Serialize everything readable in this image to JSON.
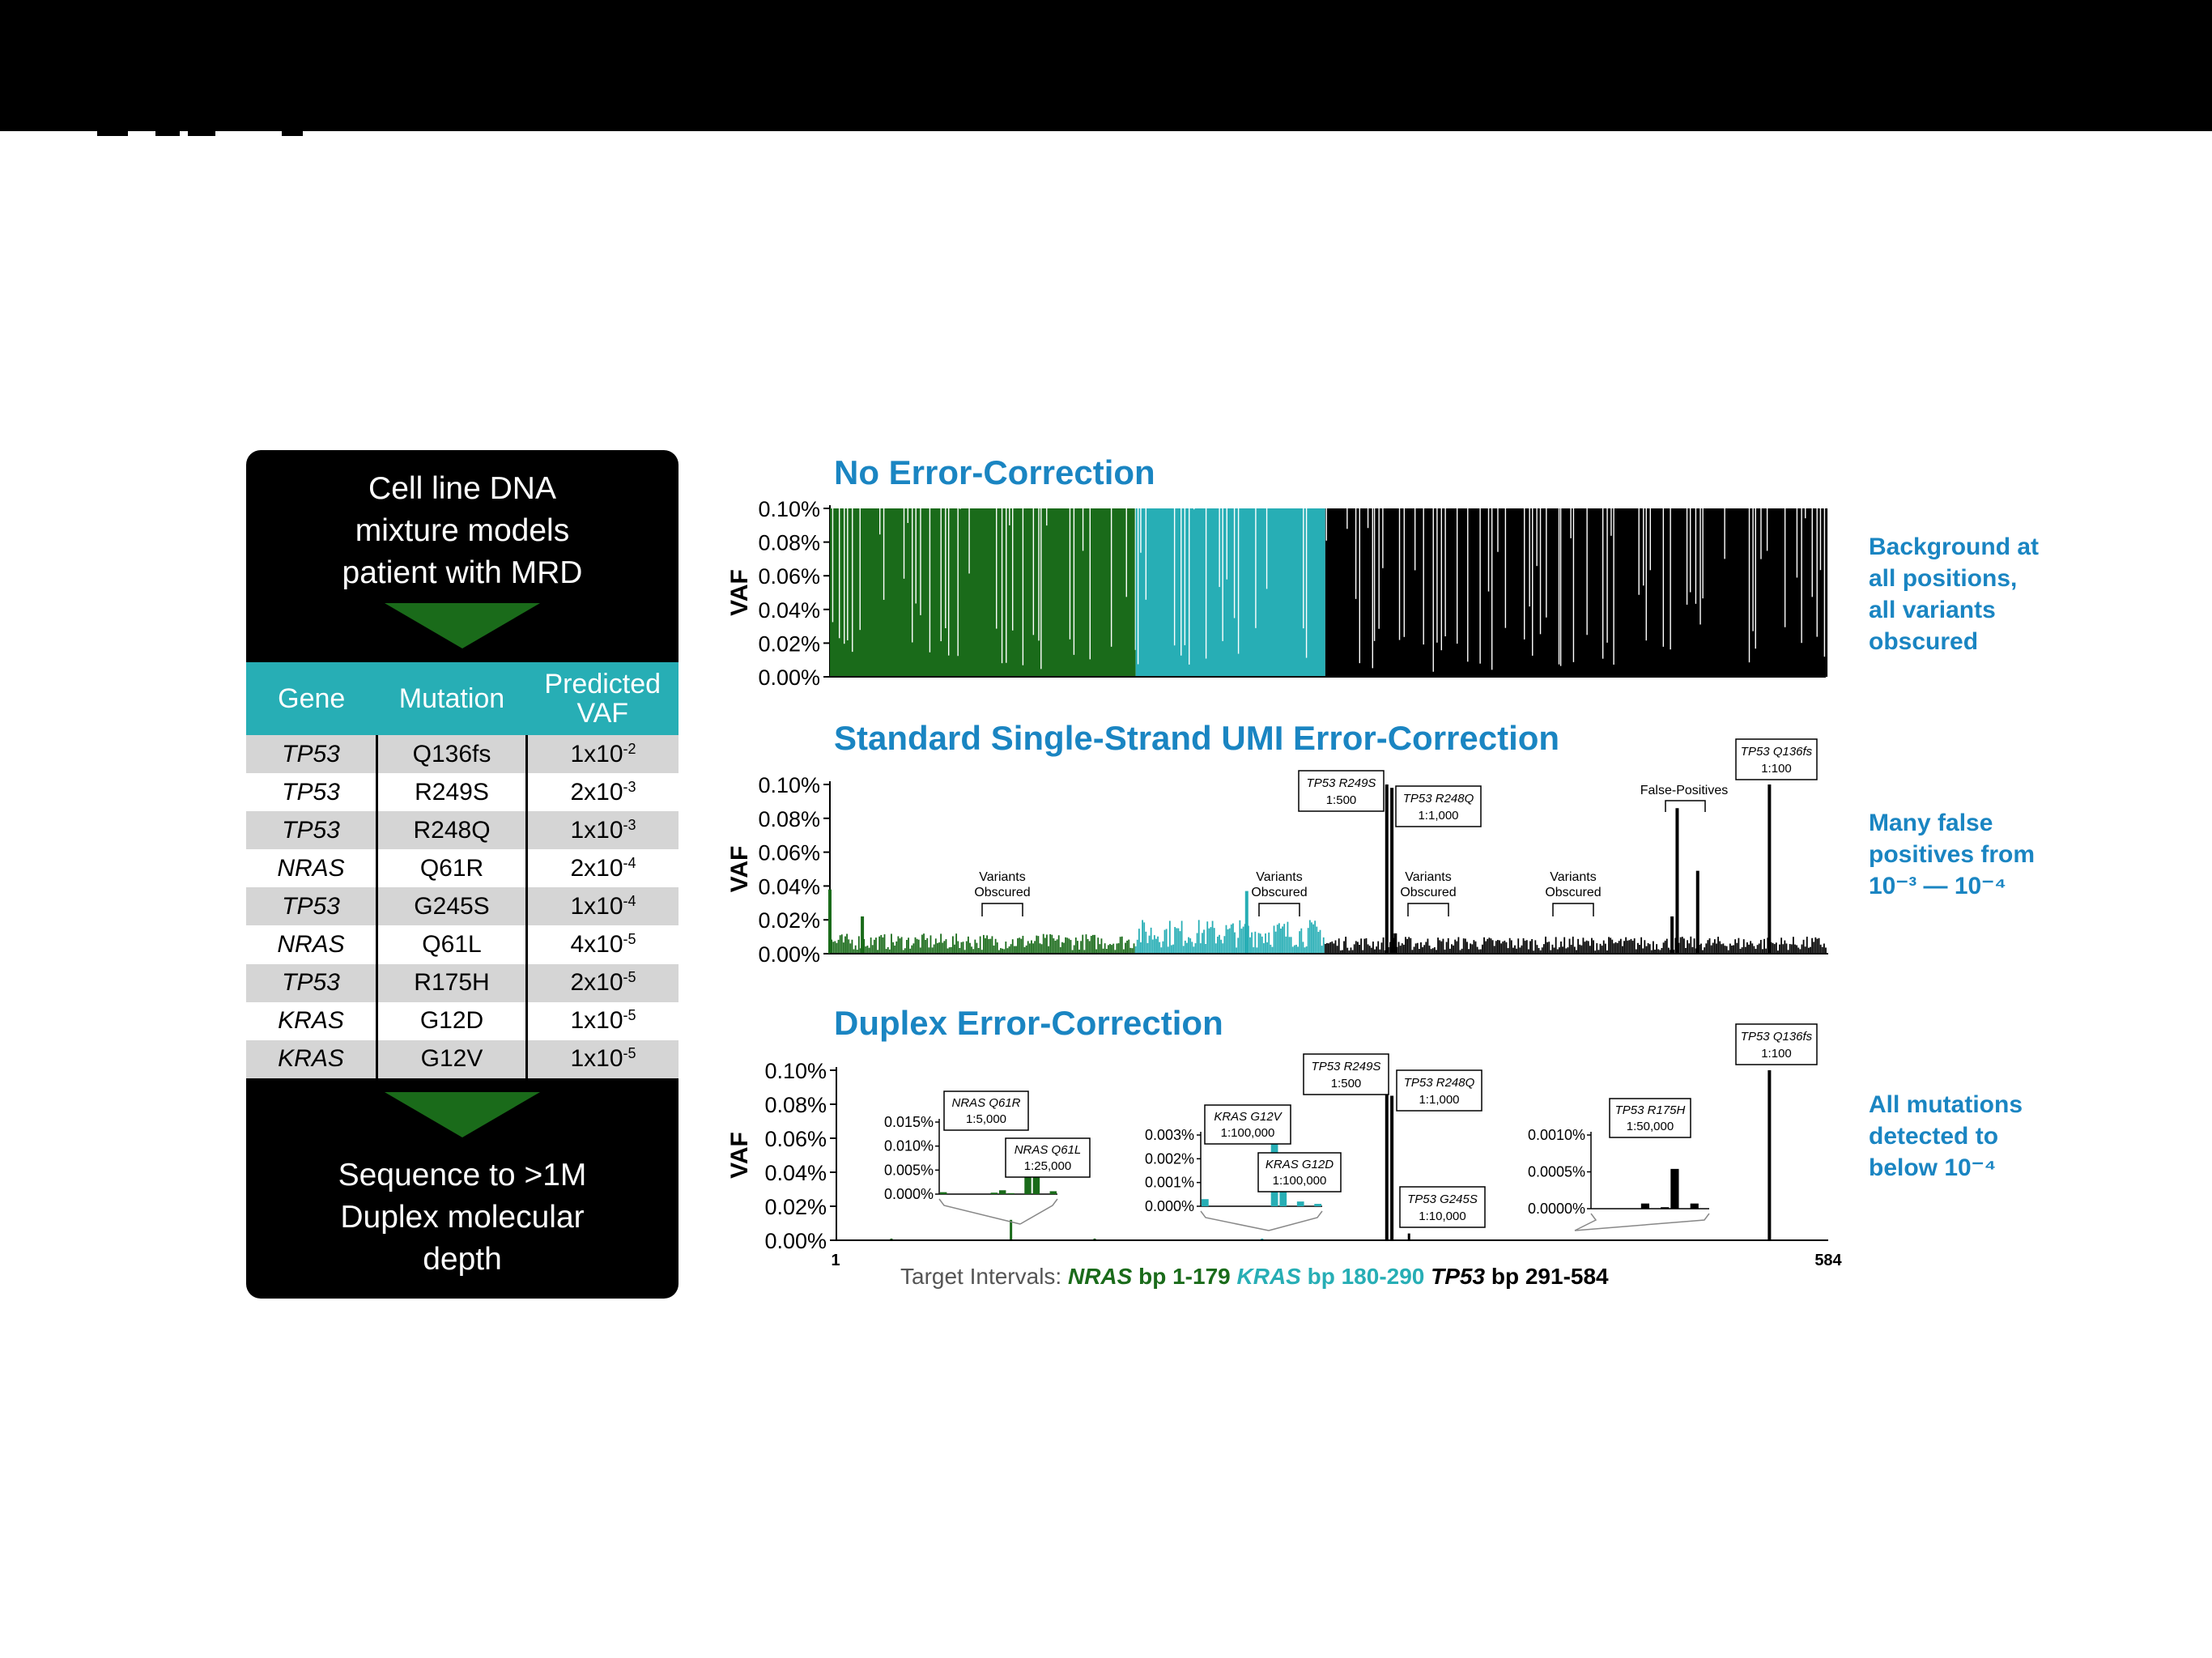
{
  "colors": {
    "nras": "#1a6b1a",
    "kras": "#27aeb5",
    "tp53": "#000000",
    "title_blue": "#1a85c2",
    "table_header": "#27aeb5",
    "row_gray": "#d5d5d5"
  },
  "panel": {
    "intro_lines": [
      "Cell line DNA",
      "mixture models",
      "patient with MRD"
    ],
    "outro_lines": [
      "Sequence to >1M",
      "Duplex molecular",
      "depth"
    ],
    "table": {
      "headers": [
        "Gene",
        "Mutation",
        "Predicted VAF"
      ],
      "rows": [
        {
          "gene": "TP53",
          "mutation": "Q136fs",
          "vaf_base": "1x10",
          "vaf_exp": "-2"
        },
        {
          "gene": "TP53",
          "mutation": "R249S",
          "vaf_base": "2x10",
          "vaf_exp": "-3"
        },
        {
          "gene": "TP53",
          "mutation": "R248Q",
          "vaf_base": "1x10",
          "vaf_exp": "-3"
        },
        {
          "gene": "NRAS",
          "mutation": "Q61R",
          "vaf_base": "2x10",
          "vaf_exp": "-4"
        },
        {
          "gene": "TP53",
          "mutation": "G245S",
          "vaf_base": "1x10",
          "vaf_exp": "-4"
        },
        {
          "gene": "NRAS",
          "mutation": "Q61L",
          "vaf_base": "4x10",
          "vaf_exp": "-5"
        },
        {
          "gene": "TP53",
          "mutation": "R175H",
          "vaf_base": "2x10",
          "vaf_exp": "-5"
        },
        {
          "gene": "KRAS",
          "mutation": "G12D",
          "vaf_base": "1x10",
          "vaf_exp": "-5"
        },
        {
          "gene": "KRAS",
          "mutation": "G12V",
          "vaf_base": "1x10",
          "vaf_exp": "-5"
        }
      ]
    }
  },
  "side_notes": {
    "panel1": "Background at\nall positions,\nall variants\nobscured",
    "panel2": "Many false\npositives from\n10⁻³ — 10⁻⁴",
    "panel3": "All mutations\ndetected to\nbelow 10⁻⁴"
  },
  "footer": {
    "prefix": "Target Intervals:",
    "nras_gene": "NRAS",
    "nras_range": "bp 1-179",
    "kras_gene": "KRAS",
    "kras_range": "bp 180-290",
    "tp53_gene": "TP53",
    "tp53_range": "bp 291-584"
  },
  "chart_data": [
    {
      "type": "bar",
      "title": "No Error-Correction",
      "ylabel": "VAF",
      "ylim": [
        0,
        0.1
      ],
      "yticks": [
        "0.00%",
        "0.02%",
        "0.04%",
        "0.06%",
        "0.08%",
        "0.10%"
      ],
      "xlim": [
        1,
        584
      ],
      "segments": [
        {
          "name": "NRAS",
          "start": 1,
          "end": 179,
          "level": 0.1
        },
        {
          "name": "KRAS",
          "start": 180,
          "end": 290,
          "level": 0.1
        },
        {
          "name": "TP53",
          "start": 291,
          "end": 584,
          "level": 0.1
        }
      ],
      "note": "Background at all positions, all variants obscured"
    },
    {
      "type": "bar",
      "title": "Standard Single-Strand UMI Error-Correction",
      "ylabel": "VAF",
      "ylim": [
        0,
        0.1
      ],
      "yticks": [
        "0.00%",
        "0.02%",
        "0.04%",
        "0.06%",
        "0.08%",
        "0.10%"
      ],
      "xlim": [
        1,
        584
      ],
      "background": {
        "NRAS": 0.007,
        "KRAS": 0.012,
        "TP53": 0.006
      },
      "peaks": [
        {
          "x": 1,
          "value": 0.038
        },
        {
          "x": 20,
          "value": 0.022
        },
        {
          "x": 245,
          "value": 0.037
        },
        {
          "x": 327,
          "value": 0.1
        },
        {
          "x": 330,
          "value": 0.098
        },
        {
          "x": 332,
          "value": 0.012
        },
        {
          "x": 494,
          "value": 0.022
        },
        {
          "x": 497,
          "value": 0.086
        },
        {
          "x": 509,
          "value": 0.049
        },
        {
          "x": 551,
          "value": 0.1
        }
      ],
      "callouts": [
        {
          "lines": [
            "TP53 R249S",
            "1:500"
          ]
        },
        {
          "lines": [
            "TP53 R248Q",
            "1:1,000"
          ]
        },
        {
          "lines": [
            "TP53 Q136fs",
            "1:100"
          ]
        }
      ],
      "annotations": {
        "variants_obscured": [
          "Variants",
          "Obscured"
        ],
        "false_positives": "False-Positives"
      },
      "note": "Many false positives from 10⁻³ — 10⁻⁴"
    },
    {
      "type": "bar",
      "title": "Duplex Error-Correction",
      "ylabel": "VAF",
      "ylim": [
        0,
        0.1
      ],
      "yticks": [
        "0.00%",
        "0.02%",
        "0.04%",
        "0.06%",
        "0.08%",
        "0.10%"
      ],
      "xlim": [
        1,
        584
      ],
      "xticks": [
        "1",
        "584"
      ],
      "peaks": [
        {
          "x": 37,
          "value": 0.001,
          "gene": "NRAS"
        },
        {
          "x": 107,
          "value": 0.012,
          "gene": "NRAS"
        },
        {
          "x": 156,
          "value": 0.001,
          "gene": "NRAS"
        },
        {
          "x": 254,
          "value": 0.001,
          "gene": "KRAS"
        },
        {
          "x": 327,
          "value": 0.1,
          "gene": "TP53"
        },
        {
          "x": 330,
          "value": 0.085,
          "gene": "TP53"
        },
        {
          "x": 340,
          "value": 0.004,
          "gene": "TP53"
        },
        {
          "x": 551,
          "value": 0.1,
          "gene": "TP53"
        }
      ],
      "callouts": [
        {
          "lines": [
            "TP53 R249S",
            "1:500"
          ]
        },
        {
          "lines": [
            "TP53 R248Q",
            "1:1,000"
          ]
        },
        {
          "lines": [
            "TP53 G245S",
            "1:10,000"
          ]
        },
        {
          "lines": [
            "TP53 Q136fs",
            "1:100"
          ]
        }
      ],
      "insets": [
        {
          "gene": "NRAS",
          "yticks": [
            "0.000%",
            "0.005%",
            "0.010%",
            "0.015%"
          ],
          "ymax": 0.015,
          "bars": [
            0.0004,
            0,
            0,
            0,
            0,
            0,
            0.0003,
            0.0008,
            0.0002,
            0,
            0.0115,
            0.0037,
            0,
            0.0006
          ],
          "callouts": [
            {
              "lines": [
                "NRAS Q61R",
                "1:5,000"
              ]
            },
            {
              "lines": [
                "NRAS Q61L",
                "1:25,000"
              ]
            }
          ]
        },
        {
          "gene": "KRAS",
          "yticks": [
            "0.000%",
            "0.001%",
            "0.002%",
            "0.003%"
          ],
          "ymax": 0.003,
          "bars": [
            0.0003,
            0,
            0,
            0,
            0,
            0,
            0,
            0,
            0.0027,
            0.0021,
            0,
            0.0002,
            0,
            0.0001
          ],
          "callouts": [
            {
              "lines": [
                "KRAS G12V",
                "1:100,000"
              ]
            },
            {
              "lines": [
                "KRAS G12D",
                "1:100,000"
              ]
            }
          ]
        },
        {
          "gene": "TP53",
          "yticks": [
            "0.0000%",
            "0.0005%",
            "0.0010%"
          ],
          "ymax": 0.001,
          "bars": [
            0,
            0,
            0,
            0,
            0,
            7e-05,
            0,
            2e-05,
            0.00054,
            0,
            7e-05,
            0
          ],
          "callouts": [
            {
              "lines": [
                "TP53 R175H",
                "1:50,000"
              ]
            }
          ]
        }
      ],
      "note": "All mutations detected to below 10⁻⁴"
    }
  ]
}
